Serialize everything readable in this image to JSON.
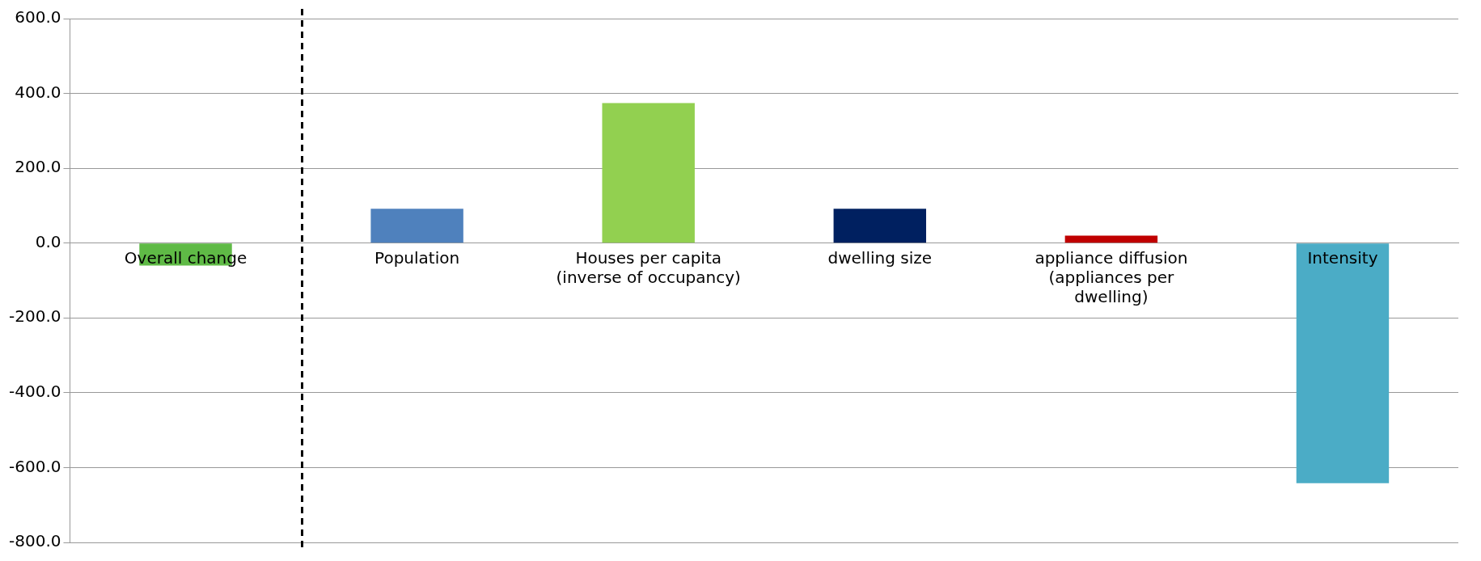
{
  "chart_data": {
    "type": "bar",
    "categories": [
      "Overall change",
      "Population",
      "Houses per capita (inverse of occupancy)",
      "dwelling size",
      "appliance diffusion (appliances per dwelling)",
      "Intensity"
    ],
    "values": [
      -60,
      92,
      374,
      92,
      20,
      -642
    ],
    "colors": [
      "#5fba46",
      "#4f81bd",
      "#92d050",
      "#002060",
      "#c00000",
      "#4bacc6"
    ],
    "ylim": [
      -800,
      600
    ],
    "yticks": [
      {
        "value": -800,
        "label": "-800.0"
      },
      {
        "value": -600,
        "label": "-600.0"
      },
      {
        "value": -400,
        "label": "-400.0"
      },
      {
        "value": -200,
        "label": "-200.0"
      },
      {
        "value": 0,
        "label": "0.0"
      },
      {
        "value": 200,
        "label": "200.0"
      },
      {
        "value": 400,
        "label": "400.0"
      },
      {
        "value": 600,
        "label": "600.0"
      }
    ],
    "grid": "y",
    "legend": false
  }
}
